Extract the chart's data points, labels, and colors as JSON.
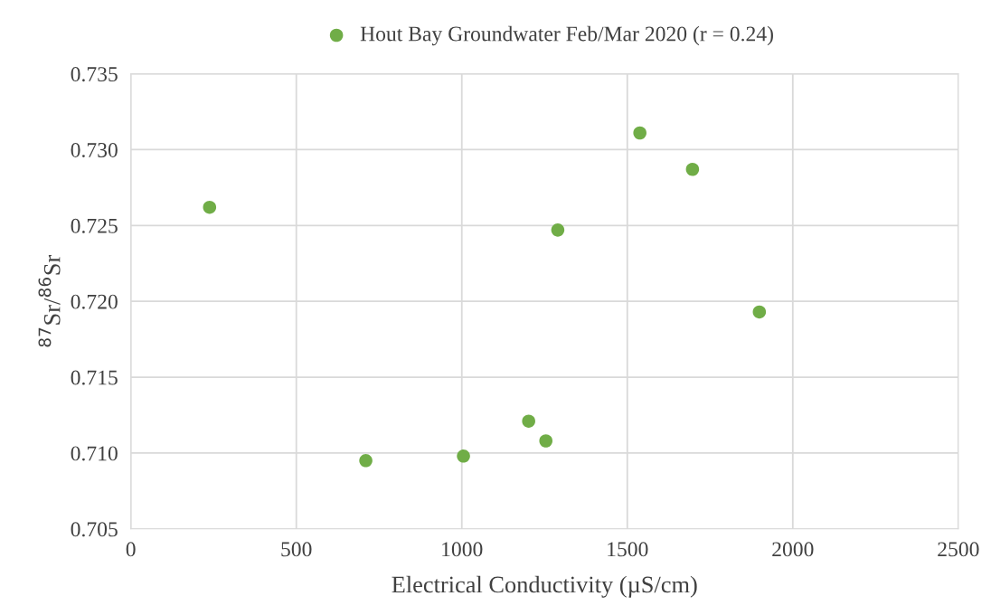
{
  "chart_data": {
    "type": "scatter",
    "xlabel": "Electrical Conductivity (µS/cm)",
    "ylabel": "$^{87}$Sr/$^{86}$Sr",
    "x": [
      238,
      710,
      1005,
      1202,
      1254,
      1290,
      1538,
      1697,
      1899
    ],
    "series": [
      {
        "name": "Hout Bay Groundwater Feb/Mar 2020 (r = 0.24)",
        "color": "#70ad47",
        "values": [
          0.7262,
          0.7095,
          0.7098,
          0.7121,
          0.7108,
          0.7247,
          0.7311,
          0.7287,
          0.7193
        ]
      }
    ],
    "xlim": [
      0,
      2500
    ],
    "xticks": [
      0,
      500,
      1000,
      1500,
      2000,
      2500
    ],
    "ylim": [
      0.705,
      0.735
    ],
    "yticks": [
      0.705,
      {
        "value": 0.71,
        "label": "0.710"
      },
      0.715,
      {
        "value": 0.72,
        "label": "0.720"
      },
      0.725,
      {
        "value": 0.73,
        "label": "0.730"
      },
      0.735
    ],
    "grid": true,
    "legend": "top",
    "marker": "circle"
  }
}
